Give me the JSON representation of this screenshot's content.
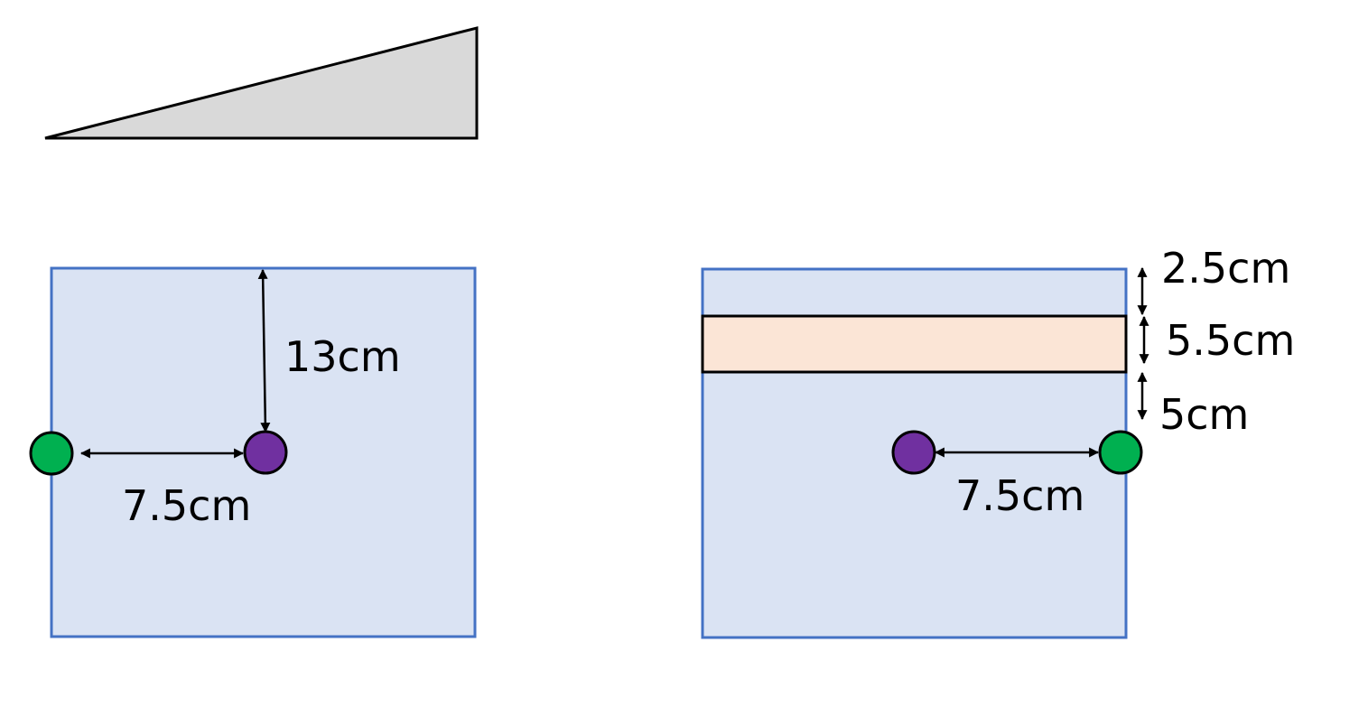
{
  "colors": {
    "panel_fill": "#dae3f3",
    "panel_stroke": "#4472c4",
    "band_fill": "#fbe5d6",
    "wedge_fill": "#d9d9d9",
    "green_dot": "#00b050",
    "purple_dot": "#7030a0",
    "stroke": "#000000"
  },
  "left_panel": {
    "vertical_distance_label": "13cm",
    "horizontal_distance_label": "7.5cm"
  },
  "right_panel": {
    "top_gap_label": "2.5cm",
    "band_height_label": "5.5cm",
    "lower_gap_label": "5cm",
    "horizontal_distance_label": "7.5cm"
  }
}
